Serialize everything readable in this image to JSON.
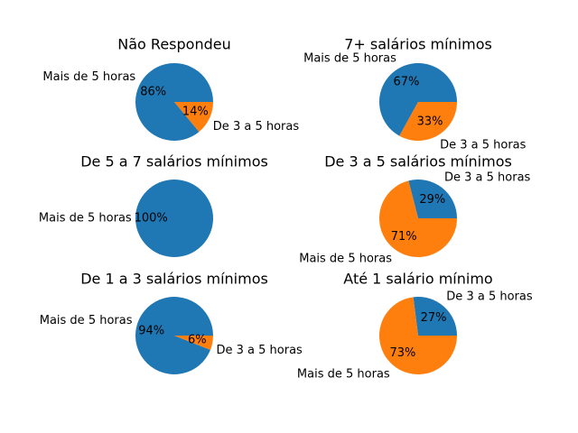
{
  "chart_data": [
    {
      "type": "pie",
      "title": "Não Respondeu",
      "slices": [
        {
          "label": "Mais de 5 horas",
          "value": 86,
          "pct_label": "86%",
          "color": "#1f77b4"
        },
        {
          "label": "De 3 a 5 horas",
          "value": 14,
          "pct_label": "14%",
          "color": "#ff7f0e"
        }
      ]
    },
    {
      "type": "pie",
      "title": "7+ salários mínimos",
      "slices": [
        {
          "label": "Mais de 5 horas",
          "value": 67,
          "pct_label": "67%",
          "color": "#1f77b4"
        },
        {
          "label": "De 3 a 5 horas",
          "value": 33,
          "pct_label": "33%",
          "color": "#ff7f0e"
        }
      ]
    },
    {
      "type": "pie",
      "title": "De 5 a 7 salários mínimos",
      "slices": [
        {
          "label": "Mais de 5 horas",
          "value": 100,
          "pct_label": "100%",
          "color": "#1f77b4"
        }
      ]
    },
    {
      "type": "pie",
      "title": "De 3 a 5 salários mínimos",
      "slices": [
        {
          "label": "De 3 a 5 horas",
          "value": 29,
          "pct_label": "29%",
          "color": "#1f77b4"
        },
        {
          "label": "Mais de 5 horas",
          "value": 71,
          "pct_label": "71%",
          "color": "#ff7f0e"
        }
      ]
    },
    {
      "type": "pie",
      "title": "De 1 a 3 salários mínimos",
      "slices": [
        {
          "label": "Mais de 5 horas",
          "value": 94,
          "pct_label": "94%",
          "color": "#1f77b4"
        },
        {
          "label": "De 3 a 5 horas",
          "value": 6,
          "pct_label": "6%",
          "color": "#ff7f0e"
        }
      ]
    },
    {
      "type": "pie",
      "title": "Até 1 salário mínimo",
      "slices": [
        {
          "label": "De 3 a 5 horas",
          "value": 27,
          "pct_label": "27%",
          "color": "#1f77b4"
        },
        {
          "label": "Mais de 5 horas",
          "value": 73,
          "pct_label": "73%",
          "color": "#ff7f0e"
        }
      ]
    }
  ]
}
